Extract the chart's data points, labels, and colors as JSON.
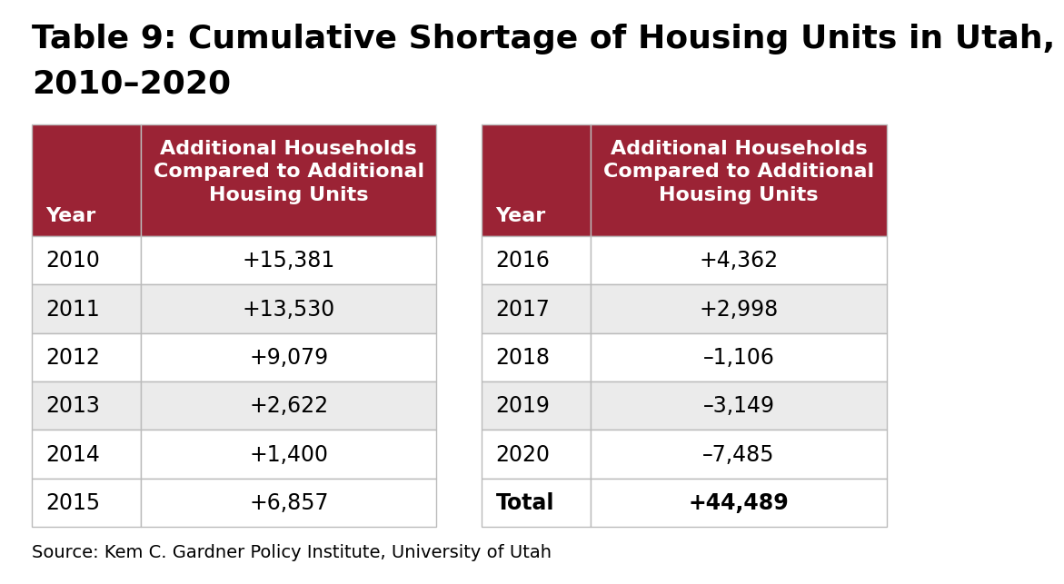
{
  "title_line1": "Table 9: Cumulative Shortage of Housing Units in Utah,",
  "title_line2": "2010–2020",
  "header_col1": "Year",
  "header_col2_lines": [
    "Additional Households",
    "Compared to Additional",
    "Housing Units"
  ],
  "left_table": [
    [
      "2010",
      "+15,381"
    ],
    [
      "2011",
      "+13,530"
    ],
    [
      "2012",
      "+9,079"
    ],
    [
      "2013",
      "+2,622"
    ],
    [
      "2014",
      "+1,400"
    ],
    [
      "2015",
      "+6,857"
    ]
  ],
  "right_table": [
    [
      "2016",
      "+4,362"
    ],
    [
      "2017",
      "+2,998"
    ],
    [
      "2018",
      "–1,106"
    ],
    [
      "2019",
      "–3,149"
    ],
    [
      "2020",
      "–7,485"
    ],
    [
      "Total",
      "+44,489"
    ]
  ],
  "source": "Source: Kem C. Gardner Policy Institute, University of Utah",
  "header_bg": "#9B2335",
  "header_text": "#FFFFFF",
  "row_bg_white": "#FFFFFF",
  "row_bg_gray": "#EBEBEB",
  "border_color": "#BBBBBB",
  "text_color": "#000000",
  "title_color": "#000000",
  "bg_color": "#FFFFFF",
  "title_fontsize": 26,
  "header_fontsize": 16,
  "data_fontsize": 17,
  "source_fontsize": 14
}
